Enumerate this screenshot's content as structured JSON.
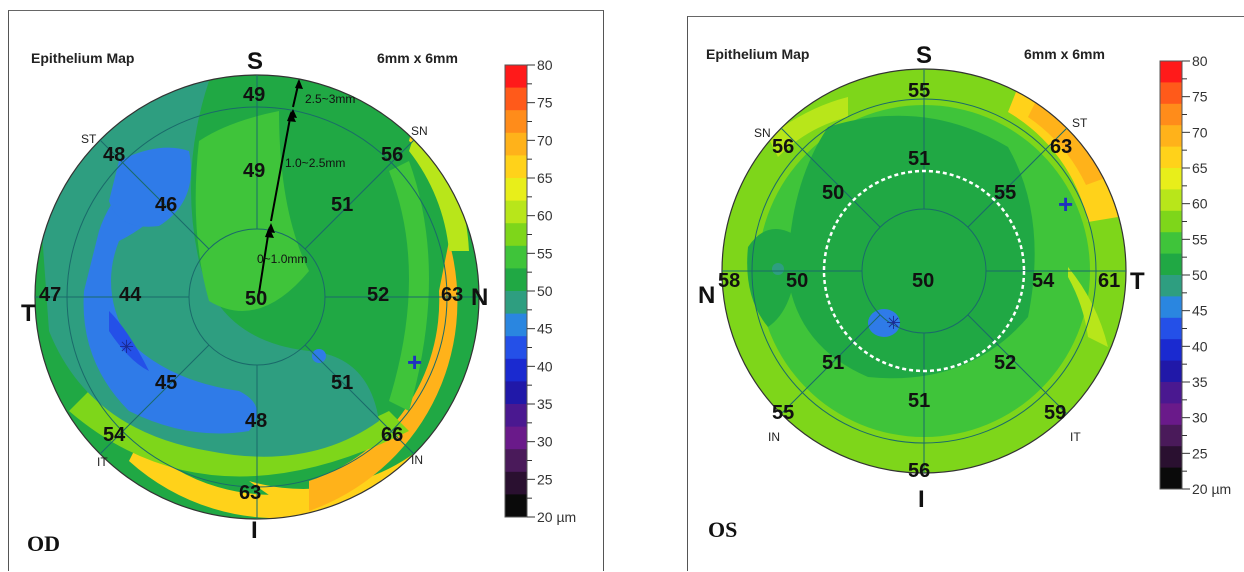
{
  "od": {
    "title": "Epithelium Map",
    "size": "6mm x 6mm",
    "eye": "OD",
    "dirs": {
      "top": "S",
      "bottom": "I",
      "left": "T",
      "right": "N"
    },
    "small_dirs": {
      "st": "ST",
      "sn": "SN",
      "it": "IT",
      "in": "IN"
    },
    "values": {
      "center": "50",
      "s_mid": "49",
      "s_outer": "49",
      "st_mid": "46",
      "st_outer": "48",
      "t_mid": "44",
      "t_outer": "47",
      "it_mid": "45",
      "it_outer": "54",
      "i_mid": "48",
      "i_outer": "63",
      "in_mid": "51",
      "in_outer": "66",
      "n_mid": "52",
      "n_outer": "63",
      "sn_mid": "51",
      "sn_outer": "56"
    },
    "zones": {
      "inner": "0~1.0mm",
      "middle": "1.0~2.5mm",
      "outer": "2.5~3mm"
    }
  },
  "os": {
    "title": "Epithelium Map",
    "size": "6mm x 6mm",
    "eye": "OS",
    "dirs": {
      "top": "S",
      "bottom": "I",
      "left": "N",
      "right": "T"
    },
    "small_dirs": {
      "sn": "SN",
      "st": "ST",
      "in": "IN",
      "it": "IT"
    },
    "values": {
      "center": "50",
      "s_mid": "51",
      "s_outer": "55",
      "sn_mid": "50",
      "sn_outer": "56",
      "n_mid": "50",
      "n_outer": "58",
      "in_mid": "51",
      "in_outer": "55",
      "i_mid": "51",
      "i_outer": "56",
      "it_mid": "52",
      "it_outer": "59",
      "t_mid": "54",
      "t_outer": "61",
      "st_mid": "55",
      "st_outer": "63"
    }
  },
  "scale": {
    "ticks": [
      "80",
      "75",
      "70",
      "65",
      "60",
      "55",
      "50",
      "45",
      "40",
      "35",
      "30",
      "25",
      "20 µm"
    ],
    "colors": [
      "#ff1a1a",
      "#ff5a1a",
      "#ff8c1a",
      "#ffb21a",
      "#ffd21a",
      "#e8ee1a",
      "#b8e61a",
      "#7ed61a",
      "#3fc43a",
      "#20a844",
      "#2e9e80",
      "#2a86e0",
      "#2450e8",
      "#1a2ad0",
      "#2018a8",
      "#4a1890",
      "#6a1a8a",
      "#4a1a5a",
      "#2a1030",
      "#0a0a0a"
    ]
  },
  "colors": {
    "blue": "#2f7be8",
    "teal": "#2e9e80",
    "green_dark": "#20a844",
    "green": "#3fc43a",
    "green_light": "#7ed61a",
    "yellow_green": "#b8e61a",
    "yellow": "#ffd21a",
    "orange": "#ffb21a"
  }
}
